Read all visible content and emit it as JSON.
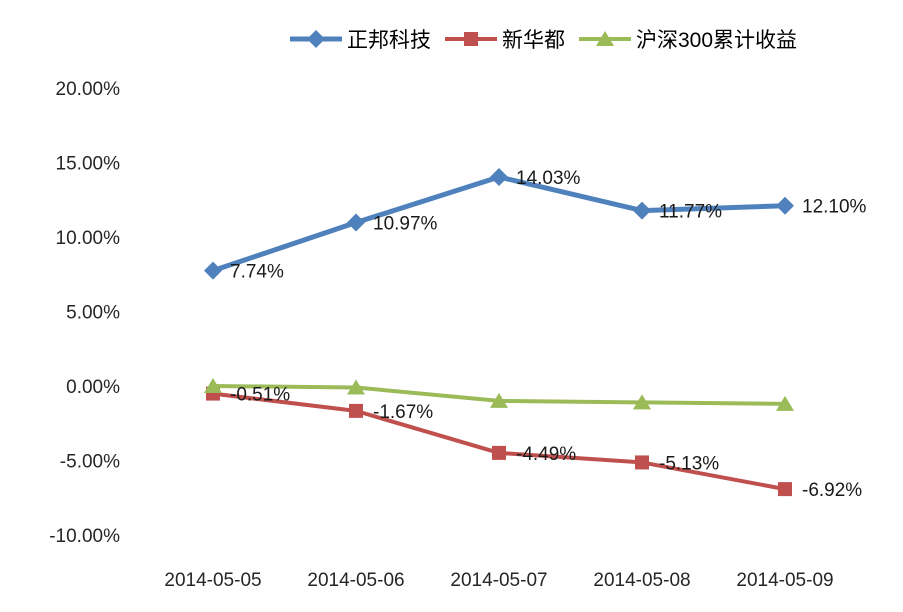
{
  "chart_data": {
    "type": "line",
    "title": "",
    "categories": [
      "2014-05-05",
      "2014-05-06",
      "2014-05-07",
      "2014-05-08",
      "2014-05-09"
    ],
    "series": [
      {
        "name": "正邦科技",
        "color": "#4F81BD",
        "marker": "diamond",
        "line_width": 5,
        "values": [
          7.74,
          10.97,
          14.03,
          11.77,
          12.1
        ],
        "labels": [
          "7.74%",
          "10.97%",
          "14.03%",
          "11.77%",
          "12.10%"
        ]
      },
      {
        "name": "新华都",
        "color": "#C0504D",
        "marker": "square",
        "line_width": 4,
        "values": [
          -0.51,
          -1.67,
          -4.49,
          -5.13,
          -6.92
        ],
        "labels": [
          "-0.51%",
          "-1.67%",
          "-4.49%",
          "-5.13%",
          "-6.92%"
        ]
      },
      {
        "name": "沪深300累计收益",
        "color": "#9BBB59",
        "marker": "triangle",
        "line_width": 4,
        "values": [
          0.0,
          -0.1,
          -1.0,
          -1.1,
          -1.2
        ],
        "labels": [
          "",
          "",
          "",
          "",
          ""
        ]
      }
    ],
    "ylim": [
      -10,
      20
    ],
    "yticks": [
      20,
      15,
      10,
      5,
      0,
      -5,
      -10
    ],
    "ytick_labels": [
      "20.00%",
      "15.00%",
      "10.00%",
      "5.00%",
      "0.00%",
      "-5.00%",
      "-10.00%"
    ],
    "grid": false,
    "legend_position": "top",
    "xlabel": "",
    "ylabel": ""
  }
}
